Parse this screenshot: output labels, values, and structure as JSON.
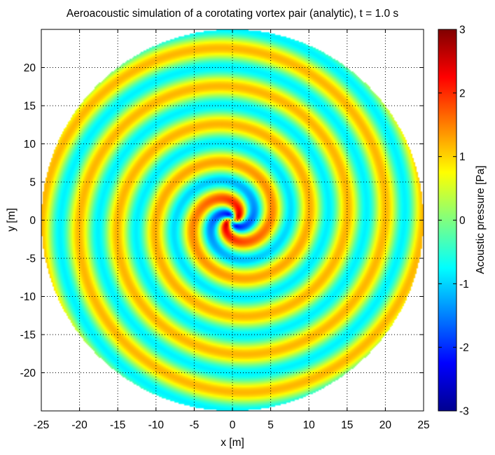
{
  "chart_data": {
    "type": "heatmap",
    "title": "Aeroacoustic simulation of a corotating vortex pair (analytic), t =   1.0 s",
    "xlabel": "x [m]",
    "ylabel": "y [m]",
    "xlim": [
      -25,
      25
    ],
    "ylim": [
      -25,
      25
    ],
    "xticks": [
      -25,
      -20,
      -15,
      -10,
      -5,
      0,
      5,
      10,
      15,
      20,
      25
    ],
    "yticks": [
      -20,
      -15,
      -10,
      -5,
      0,
      5,
      10,
      15,
      20
    ],
    "grid": true,
    "colorbar": {
      "label": "Acoustic pressure [Pa]",
      "limits": [
        -3,
        3
      ],
      "ticks": [
        -3,
        -2,
        -1,
        0,
        1,
        2,
        3
      ],
      "colormap": "jet"
    },
    "field": {
      "domain_radius": 25,
      "spiral_arms": 2,
      "wavelength": 5,
      "peak_amplitude": 3,
      "outer_amplitude": 1
    }
  }
}
